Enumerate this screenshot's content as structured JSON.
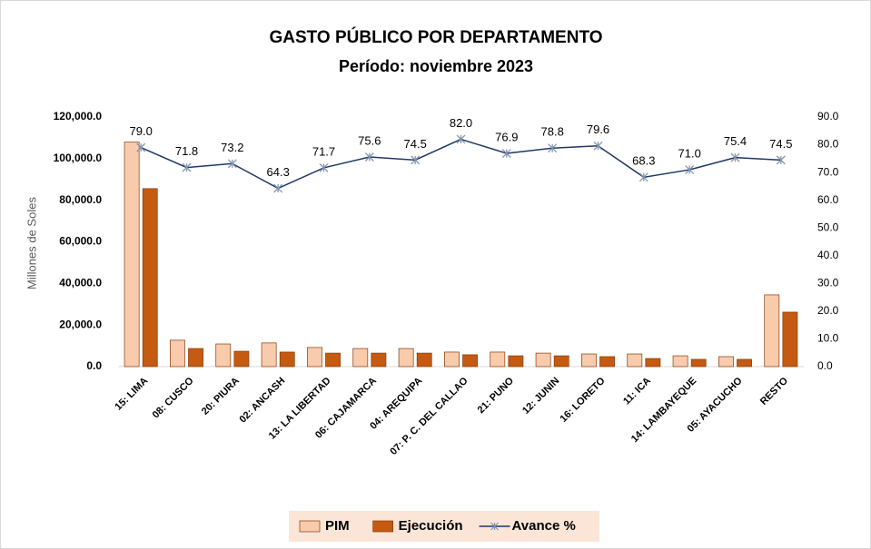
{
  "chart_data": {
    "type": "bar_line",
    "title": "GASTO PÚBLICO POR DEPARTAMENTO",
    "subtitle": "Período: noviembre 2023",
    "y_label": "Millones de Soles",
    "categories": [
      "15: LIMA",
      "08: CUSCO",
      "20: PIURA",
      "02: ANCASH",
      "13: LA LIBERTAD",
      "06: CAJAMARCA",
      "04: AREQUIPA",
      "07: P. C. DEL CALLAO",
      "21: PUNO",
      "12: JUNIN",
      "16: LORETO",
      "11: ICA",
      "14: LAMBAYEQUE",
      "05: AYACUCHO",
      "RESTO"
    ],
    "series": [
      {
        "name": "PIM",
        "type": "bar",
        "color": "#f8cbad",
        "values": [
          108000,
          12700,
          10900,
          11400,
          9200,
          8700,
          8700,
          7000,
          7000,
          6500,
          6100,
          6100,
          5200,
          4800,
          34500
        ]
      },
      {
        "name": "Ejecución",
        "type": "bar",
        "color": "#c55a11",
        "values": [
          85600,
          8700,
          7400,
          7000,
          6500,
          6500,
          6500,
          5700,
          5200,
          5200,
          4800,
          3900,
          3500,
          3500,
          26200
        ]
      },
      {
        "name": "Avance %",
        "type": "line",
        "axis": "y2",
        "color": "#1f3864",
        "marker_color": "#8497b0",
        "values": [
          79.0,
          71.8,
          73.2,
          64.3,
          71.7,
          75.6,
          74.5,
          82.0,
          76.9,
          78.8,
          79.6,
          68.3,
          71.0,
          75.4,
          74.5
        ],
        "value_labels": [
          "79.0",
          "71.8",
          "73.2",
          "64.3",
          "71.7",
          "75.6",
          "74.5",
          "82.0",
          "76.9",
          "78.8",
          "79.6",
          "68.3",
          "71.0",
          "75.4",
          "74.5"
        ]
      }
    ],
    "ylim": [
      0,
      120000
    ],
    "yticks": [
      {
        "value": 0,
        "label": "0.0"
      },
      {
        "value": 20000,
        "label": "20,000.0"
      },
      {
        "value": 40000,
        "label": "40,000.0"
      },
      {
        "value": 60000,
        "label": "60,000.0"
      },
      {
        "value": 80000,
        "label": "80,000.0"
      },
      {
        "value": 100000,
        "label": "100,000.0"
      },
      {
        "value": 120000,
        "label": "120,000.0"
      }
    ],
    "y2lim": [
      0,
      90
    ],
    "y2ticks": [
      {
        "value": 0,
        "label": "0.0"
      },
      {
        "value": 10,
        "label": "10.0"
      },
      {
        "value": 20,
        "label": "20.0"
      },
      {
        "value": 30,
        "label": "30.0"
      },
      {
        "value": 40,
        "label": "40.0"
      },
      {
        "value": 50,
        "label": "50.0"
      },
      {
        "value": 60,
        "label": "60.0"
      },
      {
        "value": 70,
        "label": "70.0"
      },
      {
        "value": 80,
        "label": "80.0"
      },
      {
        "value": 90,
        "label": "90.0"
      }
    ],
    "legend": "bottom",
    "grid": false
  }
}
